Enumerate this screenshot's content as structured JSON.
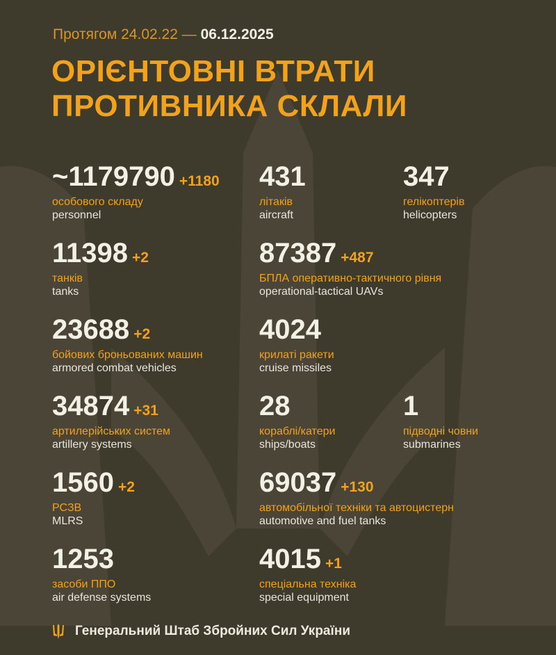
{
  "header": {
    "period_prefix": "Протягом 24.02.22 —",
    "period_end": "06.12.2025",
    "title_line1": "ОРІЄНТОВНІ ВТРАТИ",
    "title_line2": "ПРОТИВНИКА СКЛАЛИ"
  },
  "stats": [
    {
      "value": "~1179790",
      "delta": "+1180",
      "ua": "особового складу",
      "en": "personnel"
    },
    {
      "value": "431",
      "delta": "",
      "ua": "літаків",
      "en": "aircraft"
    },
    {
      "value": "347",
      "delta": "",
      "ua": "гелікоптерів",
      "en": "helicopters"
    },
    {
      "value": "11398",
      "delta": "+2",
      "ua": "танків",
      "en": "tanks"
    },
    {
      "value": "87387",
      "delta": "+487",
      "ua": "БПЛА оперативно-тактичного рівня",
      "en": "operational-tactical UAVs"
    },
    {
      "value": "23688",
      "delta": "+2",
      "ua": "бойових броньованих машин",
      "en": "armored combat vehicles"
    },
    {
      "value": "4024",
      "delta": "",
      "ua": "крилаті ракети",
      "en": "cruise missiles"
    },
    {
      "value": "34874",
      "delta": "+31",
      "ua": "артилерійських систем",
      "en": "artillery systems"
    },
    {
      "value": "28",
      "delta": "",
      "ua": "кораблі/катери",
      "en": "ships/boats"
    },
    {
      "value": "1",
      "delta": "",
      "ua": "підводні човни",
      "en": "submarines"
    },
    {
      "value": "1560",
      "delta": "+2",
      "ua": "РСЗВ",
      "en": "MLRS"
    },
    {
      "value": "69037",
      "delta": "+130",
      "ua": "автомобільної техніки та автоцистерн",
      "en": "automotive and fuel tanks"
    },
    {
      "value": "1253",
      "delta": "",
      "ua": "засоби ППО",
      "en": "air defense systems"
    },
    {
      "value": "4015",
      "delta": "+1",
      "ua": "спеціальна техніка",
      "en": "special equipment"
    }
  ],
  "footer": {
    "text": "Генеральний Штаб Збройних Сил України",
    "icon": "trident-icon"
  },
  "colors": {
    "background": "#3e3a2c",
    "accent": "#f3a21b",
    "text": "#f3f0e6"
  }
}
